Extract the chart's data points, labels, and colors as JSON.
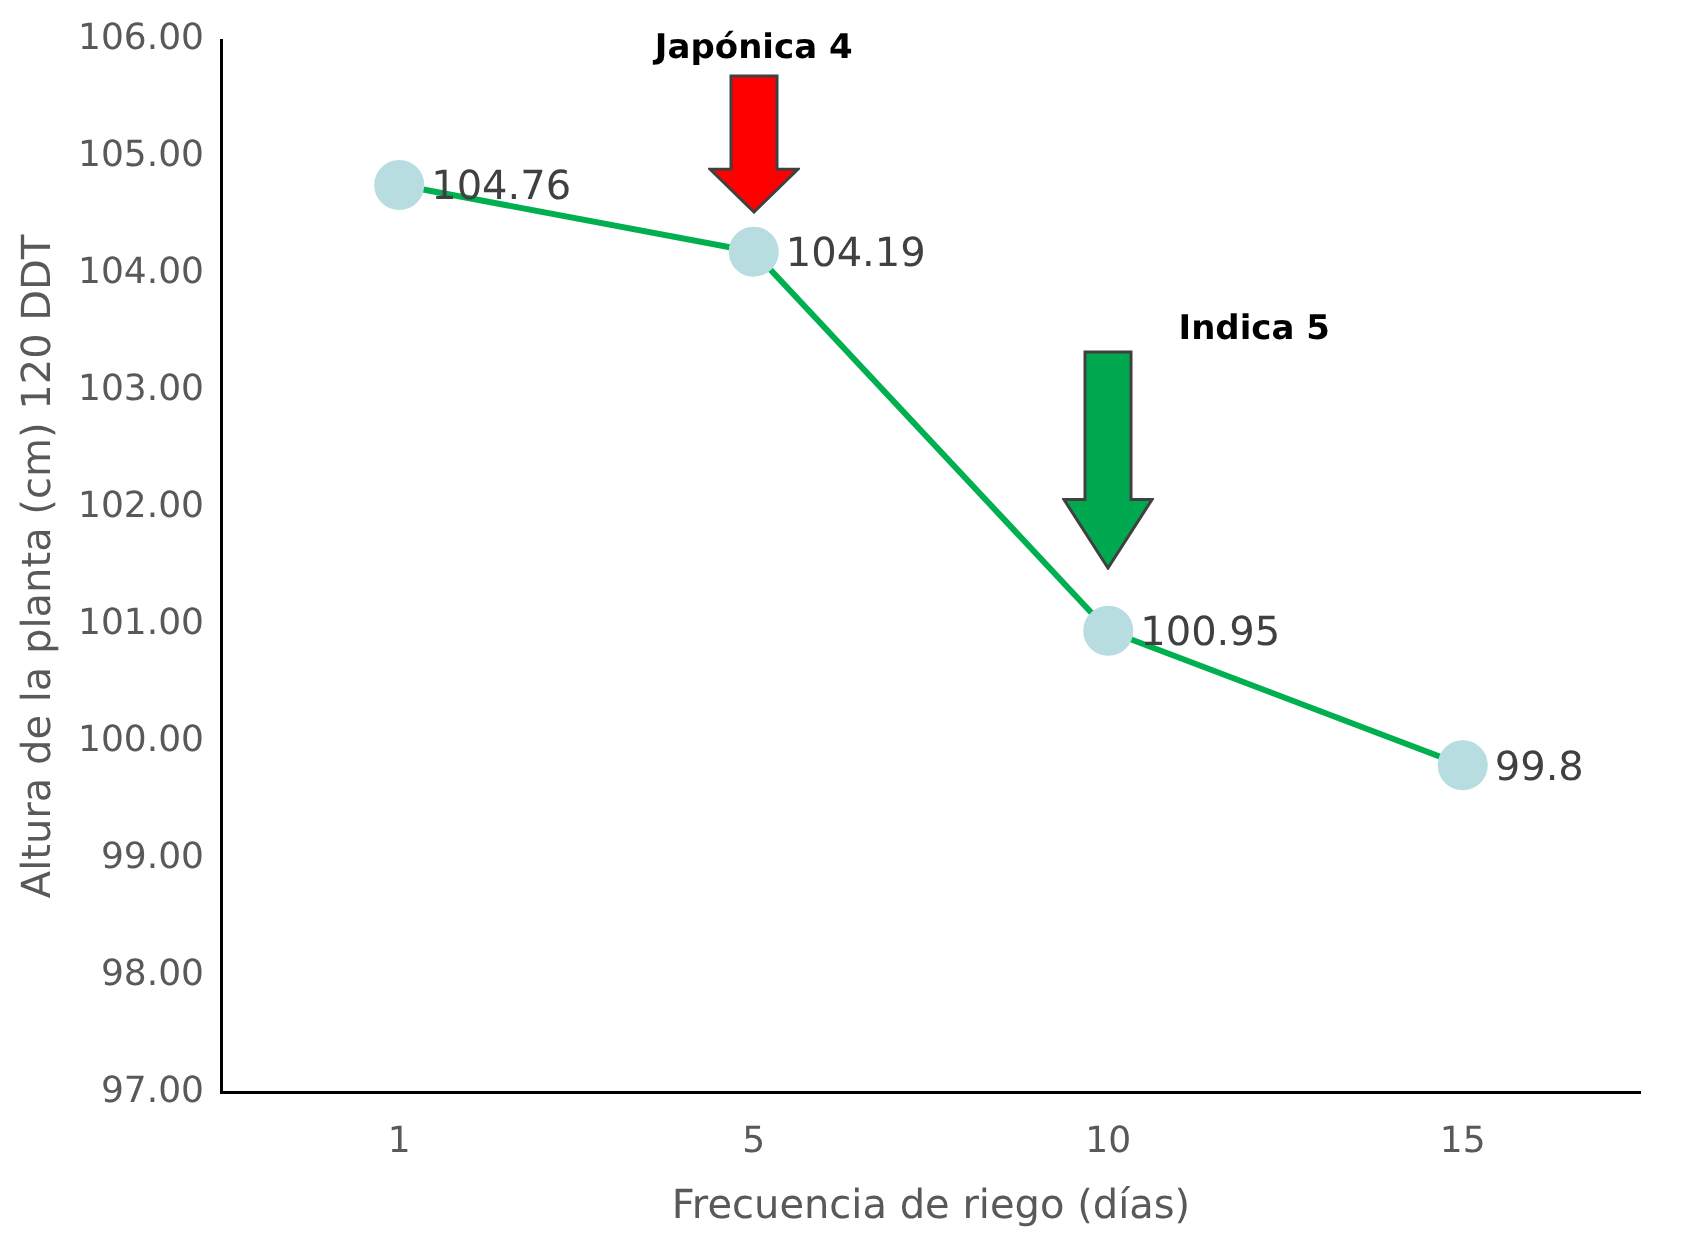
{
  "chart_data": {
    "type": "line",
    "xlabel": "Frecuencia de riego (días)",
    "ylabel": "Altura de la planta (cm) 120 DDT",
    "categories": [
      "1",
      "5",
      "10",
      "15"
    ],
    "series": [
      {
        "color": "#00b050",
        "colors": [
          "#b7dde1",
          "#b7dde1",
          "#b7dde1",
          "#b7dde1"
        ],
        "values": [
          104.76,
          104.19,
          100.95,
          99.8
        ]
      }
    ],
    "ylim": [
      97,
      106
    ],
    "yticks": [
      {
        "value": 97,
        "label": "97.00"
      },
      {
        "value": 98,
        "label": "98.00"
      },
      {
        "value": 99,
        "label": "99.00"
      },
      {
        "value": 100,
        "label": "100.00"
      },
      {
        "value": 101,
        "label": "101.00"
      },
      {
        "value": 102,
        "label": "102.00"
      },
      {
        "value": 103,
        "label": "103.00"
      },
      {
        "value": 104,
        "label": "104.00"
      },
      {
        "value": 105,
        "label": "105.00"
      },
      {
        "value": 106,
        "label": "106.00"
      }
    ],
    "grid": false,
    "legend": false,
    "marker": "circle",
    "line_style": "solid",
    "data_labels": true,
    "annotations": [
      "Japónica 4",
      "Indica 5"
    ]
  }
}
